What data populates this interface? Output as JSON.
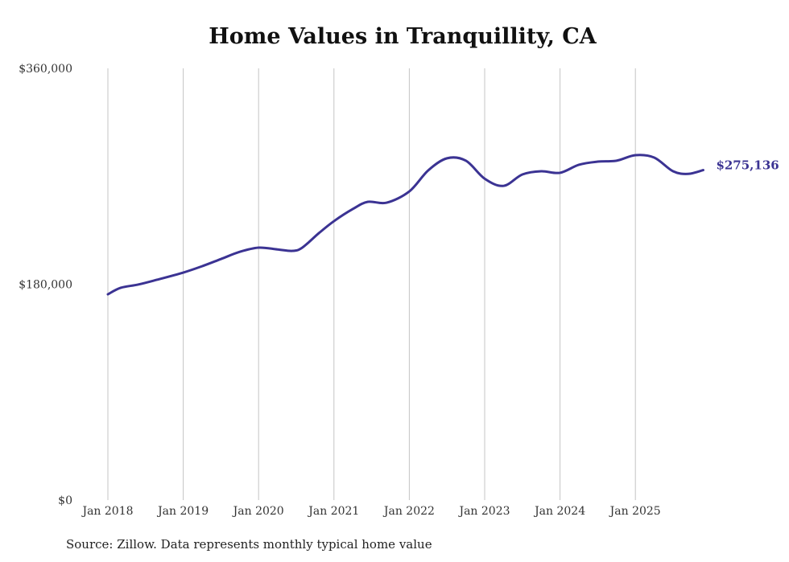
{
  "chart_data": {
    "type": "line",
    "title": "Home Values in Tranquillity, CA",
    "xlabel": "",
    "ylabel": "",
    "ylim": [
      0,
      360000
    ],
    "xlim": [
      2018,
      2025.95
    ],
    "y_ticks": [
      {
        "value": 0,
        "label": "$0"
      },
      {
        "value": 180000,
        "label": "$180,000"
      },
      {
        "value": 360000,
        "label": "$360,000"
      }
    ],
    "x_ticks": [
      {
        "value": 2018,
        "label": "Jan 2018"
      },
      {
        "value": 2019,
        "label": "Jan 2019"
      },
      {
        "value": 2020,
        "label": "Jan 2020"
      },
      {
        "value": 2021,
        "label": "Jan 2021"
      },
      {
        "value": 2022,
        "label": "Jan 2022"
      },
      {
        "value": 2023,
        "label": "Jan 2023"
      },
      {
        "value": 2024,
        "label": "Jan 2024"
      },
      {
        "value": 2025,
        "label": "Jan 2025"
      }
    ],
    "grid": "vertical",
    "color": "#3b3393",
    "series": [
      {
        "name": "Typical home value",
        "x": [
          2018,
          2018.17,
          2018.4,
          2018.65,
          2019,
          2019.25,
          2019.5,
          2019.75,
          2020,
          2020.25,
          2020.45,
          2020.58,
          2020.8,
          2021,
          2021.25,
          2021.45,
          2021.7,
          2022,
          2022.25,
          2022.5,
          2022.75,
          2023,
          2023.25,
          2023.5,
          2023.75,
          2024,
          2024.25,
          2024.5,
          2024.75,
          2025,
          2025.25,
          2025.5,
          2025.7,
          2025.9
        ],
        "values": [
          171600,
          177000,
          179700,
          183700,
          189700,
          195000,
          201000,
          207000,
          210500,
          209000,
          207800,
          210500,
          222600,
          232600,
          242700,
          248700,
          248000,
          257400,
          274900,
          285000,
          283000,
          268000,
          262000,
          271500,
          274200,
          272900,
          279600,
          282200,
          283000,
          287600,
          285600,
          274200,
          272000,
          275136
        ]
      }
    ],
    "annotations": [
      {
        "label": "$275,136"
      }
    ]
  },
  "source": "Source: Zillow. Data represents monthly typical home value"
}
